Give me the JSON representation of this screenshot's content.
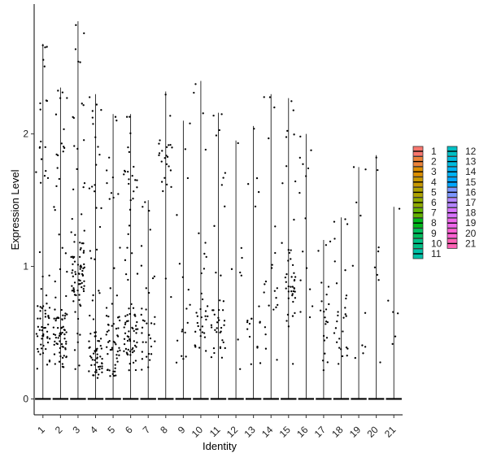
{
  "chart_data": {
    "type": "violin",
    "xlabel": "Identity",
    "ylabel": "Expression Level",
    "ylim": [
      -0.12,
      2.98
    ],
    "yticks": [
      0,
      1,
      2
    ],
    "categories": [
      "1",
      "2",
      "3",
      "4",
      "5",
      "6",
      "7",
      "8",
      "9",
      "10",
      "11",
      "12",
      "13",
      "14",
      "15",
      "16",
      "17",
      "18",
      "19",
      "20",
      "21"
    ],
    "max_values": [
      2.68,
      2.35,
      2.85,
      2.3,
      2.15,
      2.15,
      1.5,
      2.32,
      2.1,
      2.4,
      2.16,
      1.95,
      2.06,
      2.3,
      2.27,
      2.0,
      1.2,
      1.37,
      1.75,
      1.84,
      1.45
    ],
    "point_density": [
      70,
      85,
      90,
      75,
      60,
      80,
      35,
      25,
      18,
      35,
      40,
      8,
      20,
      22,
      45,
      15,
      22,
      28,
      10,
      8,
      6
    ],
    "cluster_centers": [
      0.5,
      0.45,
      0.95,
      0.3,
      0.35,
      0.45,
      0.45,
      1.8,
      0.45,
      0.6,
      0.55,
      1.0,
      0.5,
      0.7,
      0.8,
      0.8,
      0.7,
      0.5,
      0.4,
      1.0,
      0.6
    ],
    "baseline": 0,
    "legend": {
      "position": "right",
      "columns": 2,
      "entries": [
        {
          "name": "1",
          "color": "#F8766D"
        },
        {
          "name": "2",
          "color": "#EC8239"
        },
        {
          "name": "3",
          "color": "#DB8E00"
        },
        {
          "name": "4",
          "color": "#C79800"
        },
        {
          "name": "5",
          "color": "#AEA200"
        },
        {
          "name": "6",
          "color": "#8FAA00"
        },
        {
          "name": "7",
          "color": "#64B200"
        },
        {
          "name": "8",
          "color": "#00B81B"
        },
        {
          "name": "9",
          "color": "#00BD5C"
        },
        {
          "name": "10",
          "color": "#00C085"
        },
        {
          "name": "11",
          "color": "#00C1A7"
        },
        {
          "name": "12",
          "color": "#00BFC4"
        },
        {
          "name": "13",
          "color": "#00BADE"
        },
        {
          "name": "14",
          "color": "#00B2F3"
        },
        {
          "name": "15",
          "color": "#00A6FF"
        },
        {
          "name": "16",
          "color": "#7C96FF"
        },
        {
          "name": "17",
          "color": "#B385FF"
        },
        {
          "name": "18",
          "color": "#D874FD"
        },
        {
          "name": "19",
          "color": "#EF67EB"
        },
        {
          "name": "20",
          "color": "#FD61D3"
        },
        {
          "name": "21",
          "color": "#FF63B6"
        }
      ]
    }
  }
}
